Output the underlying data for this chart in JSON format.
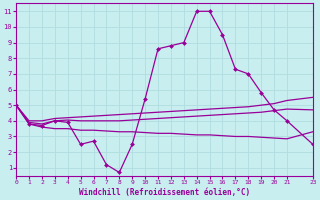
{
  "xlabel": "Windchill (Refroidissement éolien,°C)",
  "bg_color": "#c8eef0",
  "line_color": "#990099",
  "grid_color": "#aadddd",
  "xlim": [
    0,
    23
  ],
  "ylim": [
    0.5,
    11.5
  ],
  "xticks": [
    0,
    1,
    2,
    3,
    4,
    5,
    6,
    7,
    8,
    9,
    10,
    11,
    12,
    13,
    14,
    15,
    16,
    17,
    18,
    19,
    20,
    21,
    23
  ],
  "yticks": [
    1,
    2,
    3,
    4,
    5,
    6,
    7,
    8,
    9,
    10,
    11
  ],
  "lines": [
    {
      "x": [
        0,
        1,
        2,
        3,
        4,
        5,
        6,
        7,
        8,
        9,
        10,
        11,
        12,
        13,
        14,
        15,
        16,
        17,
        18,
        19,
        20,
        21,
        23
      ],
      "y": [
        5.0,
        3.8,
        3.7,
        4.0,
        3.9,
        2.5,
        2.7,
        1.2,
        0.7,
        2.5,
        5.4,
        8.6,
        8.8,
        9.0,
        11.0,
        11.0,
        9.5,
        7.3,
        7.0,
        5.8,
        4.7,
        4.0,
        2.5
      ],
      "marker": "D",
      "markersize": 2.0,
      "lw": 0.9
    },
    {
      "x": [
        0,
        1,
        2,
        3,
        4,
        5,
        6,
        7,
        8,
        9,
        10,
        11,
        12,
        13,
        14,
        15,
        16,
        17,
        18,
        19,
        20,
        21,
        23
      ],
      "y": [
        5.0,
        4.0,
        4.0,
        4.15,
        4.2,
        4.25,
        4.3,
        4.35,
        4.4,
        4.45,
        4.5,
        4.55,
        4.6,
        4.65,
        4.7,
        4.75,
        4.8,
        4.85,
        4.9,
        5.0,
        5.1,
        5.3,
        5.5
      ],
      "marker": null,
      "markersize": 0,
      "lw": 0.9
    },
    {
      "x": [
        0,
        1,
        2,
        3,
        4,
        5,
        6,
        7,
        8,
        9,
        10,
        11,
        12,
        13,
        14,
        15,
        16,
        17,
        18,
        19,
        20,
        21,
        23
      ],
      "y": [
        5.0,
        3.9,
        3.8,
        4.0,
        4.05,
        4.0,
        4.0,
        4.0,
        4.0,
        4.05,
        4.1,
        4.15,
        4.2,
        4.25,
        4.3,
        4.35,
        4.4,
        4.45,
        4.5,
        4.55,
        4.65,
        4.75,
        4.7
      ],
      "marker": null,
      "markersize": 0,
      "lw": 0.9
    },
    {
      "x": [
        0,
        1,
        2,
        3,
        4,
        5,
        6,
        7,
        8,
        9,
        10,
        11,
        12,
        13,
        14,
        15,
        16,
        17,
        18,
        19,
        20,
        21,
        23
      ],
      "y": [
        5.0,
        3.8,
        3.6,
        3.5,
        3.5,
        3.4,
        3.4,
        3.35,
        3.3,
        3.3,
        3.25,
        3.2,
        3.2,
        3.15,
        3.1,
        3.1,
        3.05,
        3.0,
        3.0,
        2.95,
        2.9,
        2.85,
        3.3
      ],
      "marker": null,
      "markersize": 0,
      "lw": 0.9
    }
  ]
}
